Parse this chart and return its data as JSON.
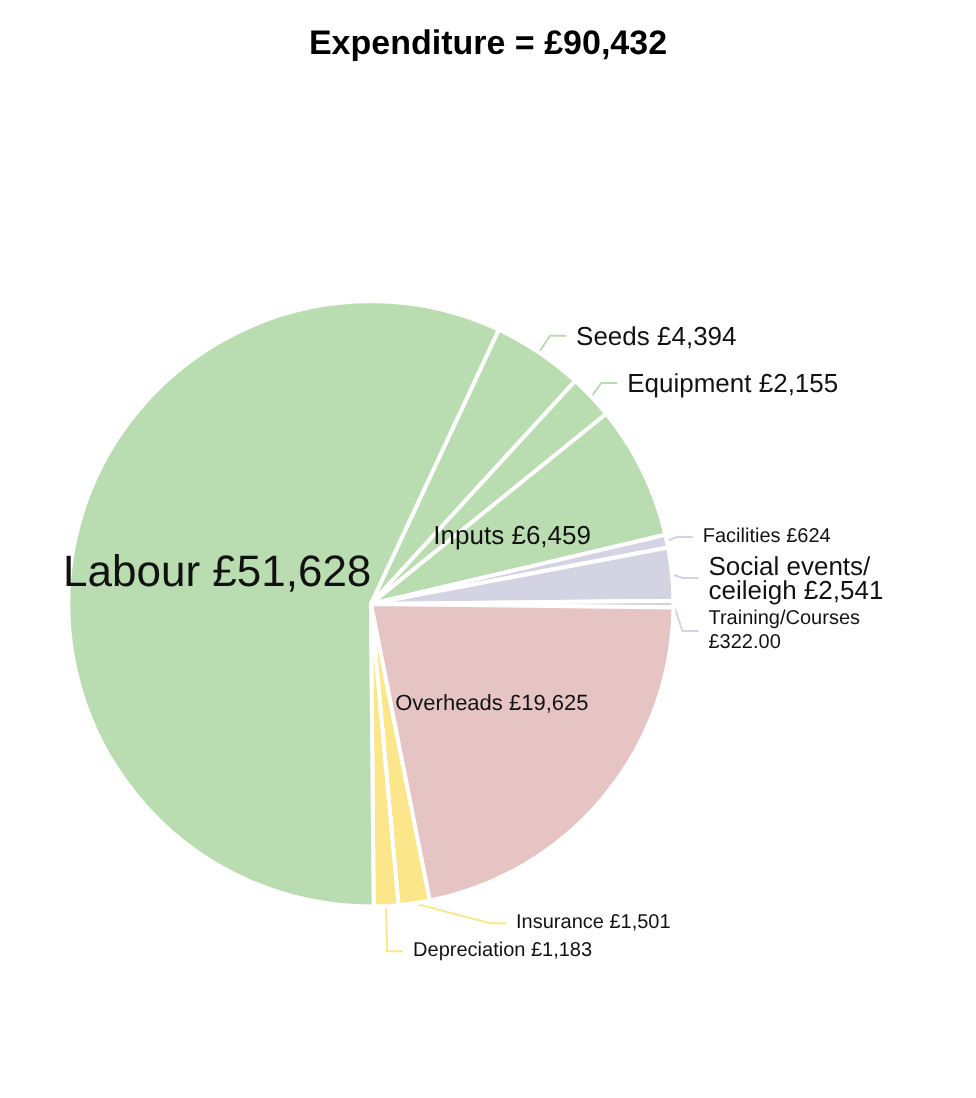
{
  "chart_data": {
    "type": "pie",
    "title": "Expenditure = £90,432",
    "categories": [
      "Seeds",
      "Equipment",
      "Inputs",
      "Facilities",
      "Social events/ceileigh",
      "Training/Courses",
      "Overheads",
      "Insurance",
      "Depreciation",
      "Labour"
    ],
    "values": [
      4394,
      2155,
      6459,
      624,
      2541,
      322,
      19625,
      1501,
      1183,
      51628
    ],
    "value_labels": [
      "£4,394",
      "£2,155",
      "£6,459",
      "£624",
      "£2,541",
      "£322.00",
      "£19,625",
      "£1,501",
      "£1,183",
      "£51,628"
    ],
    "colors": [
      "#b9dcb0",
      "#b9dcb0",
      "#b9dcb0",
      "#d3d3e3",
      "#d3d3e3",
      "#d3d3e3",
      "#e6c4c4",
      "#fbe68a",
      "#fbe68a",
      "#b9dcb0"
    ]
  }
}
